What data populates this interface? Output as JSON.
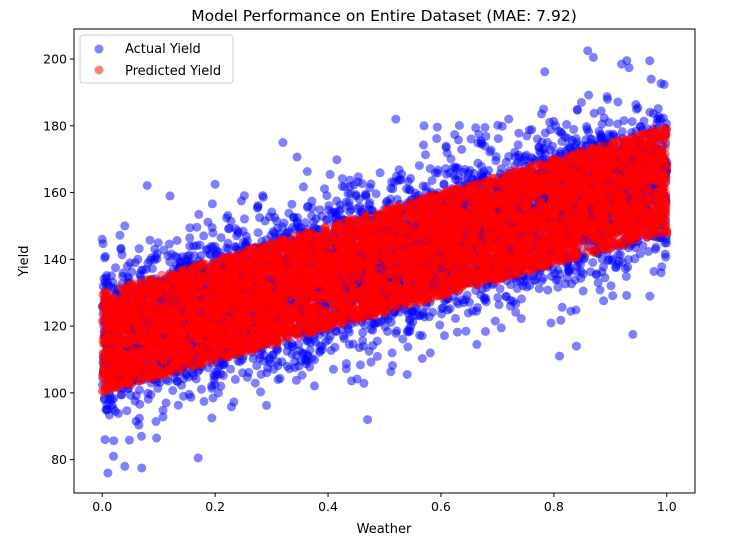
{
  "chart_data": {
    "type": "scatter",
    "title": "Model Performance on Entire Dataset (MAE: 7.92)",
    "xlabel": "Weather",
    "ylabel": "Yield",
    "xlim": [
      -0.05,
      1.05
    ],
    "ylim": [
      70,
      209
    ],
    "xticks": [
      0.0,
      0.2,
      0.4,
      0.6,
      0.8,
      1.0
    ],
    "xtick_labels": [
      "0.0",
      "0.2",
      "0.4",
      "0.6",
      "0.8",
      "1.0"
    ],
    "yticks": [
      80,
      100,
      120,
      140,
      160,
      180,
      200
    ],
    "ytick_labels": [
      "80",
      "100",
      "120",
      "140",
      "160",
      "180",
      "200"
    ],
    "grid": false,
    "legend_position": "upper-left",
    "series": [
      {
        "name": "Actual Yield",
        "color": "#0000ff",
        "alpha": 0.5,
        "trend": {
          "intercept": 115,
          "slope": 50
        },
        "noise_sd": 11,
        "sample_points": [
          {
            "x": 0.01,
            "y": 76
          },
          {
            "x": 0.02,
            "y": 81
          },
          {
            "x": 0.04,
            "y": 78
          },
          {
            "x": 0.07,
            "y": 77.5
          },
          {
            "x": 0.17,
            "y": 80.5
          },
          {
            "x": 0.005,
            "y": 86
          },
          {
            "x": 0.0,
            "y": 146
          },
          {
            "x": 0.04,
            "y": 150
          },
          {
            "x": 0.12,
            "y": 159
          },
          {
            "x": 0.2,
            "y": 162.5
          },
          {
            "x": 0.32,
            "y": 175
          },
          {
            "x": 0.47,
            "y": 92
          },
          {
            "x": 0.52,
            "y": 182
          },
          {
            "x": 0.57,
            "y": 180
          },
          {
            "x": 0.72,
            "y": 182
          },
          {
            "x": 0.86,
            "y": 202.5
          },
          {
            "x": 0.87,
            "y": 200.5
          },
          {
            "x": 0.92,
            "y": 198.5
          },
          {
            "x": 0.97,
            "y": 199.5
          },
          {
            "x": 0.81,
            "y": 111
          },
          {
            "x": 0.84,
            "y": 114
          },
          {
            "x": 0.94,
            "y": 117.5
          },
          {
            "x": 0.97,
            "y": 129
          },
          {
            "x": 0.99,
            "y": 136
          }
        ]
      },
      {
        "name": "Predicted Yield",
        "color": "#ff0000",
        "alpha": 0.5,
        "band": {
          "at_x0": [
            100,
            130
          ],
          "at_x1": [
            148,
            180
          ]
        }
      }
    ],
    "n_points": 6000
  }
}
